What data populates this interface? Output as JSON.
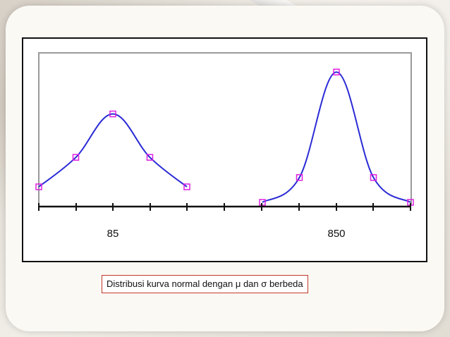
{
  "caption": {
    "prefix": "Distribusi kurva normal dengan",
    "mu": "μ",
    "and": "dan",
    "sigma": "σ",
    "suffix": "berbeda"
  },
  "chart_data": {
    "type": "line",
    "title": "",
    "xlabel": "",
    "ylabel": "",
    "tick_labels": [
      "85",
      "850"
    ],
    "line_color": "#2b2bd6",
    "marker_color": "#e020e0",
    "series": [
      {
        "points": [
          {
            "x": -2,
            "y": 0.05
          },
          {
            "x": -1,
            "y": 0.24
          },
          {
            "x": 0,
            "y": 0.52
          },
          {
            "x": 1,
            "y": 0.24
          },
          {
            "x": 2,
            "y": 0.05
          }
        ]
      },
      {
        "points": [
          {
            "x": -2,
            "y": 0.0
          },
          {
            "x": -1,
            "y": 0.16
          },
          {
            "x": 0,
            "y": 0.84
          },
          {
            "x": 1,
            "y": 0.16
          },
          {
            "x": 2,
            "y": 0.0
          }
        ]
      }
    ]
  }
}
